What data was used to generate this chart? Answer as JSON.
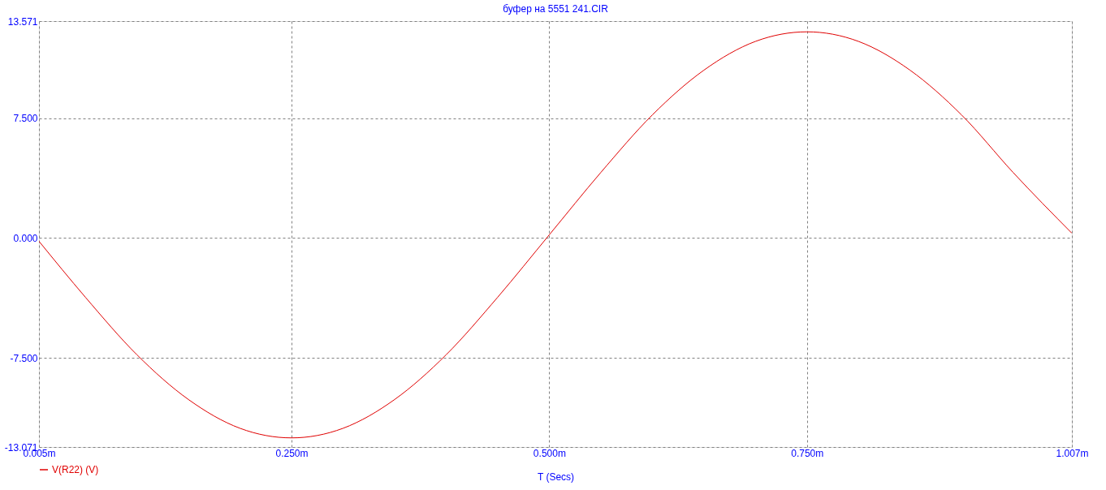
{
  "chart_data": {
    "type": "line",
    "title": "буфер на 5551 241.CIR",
    "xlabel": "T (Secs)",
    "x": [
      0.005,
      0.05,
      0.1,
      0.15,
      0.2,
      0.25,
      0.3,
      0.35,
      0.4,
      0.45,
      0.5,
      0.55,
      0.6,
      0.65,
      0.7,
      0.75,
      0.8,
      0.85,
      0.9,
      0.95,
      1.007
    ],
    "series": [
      {
        "name": "V(R22) (V)",
        "color": "#e00000",
        "values": [
          -0.2,
          -3.7,
          -7.3,
          -10.1,
          -11.9,
          -12.5,
          -11.9,
          -10.1,
          -7.3,
          -3.7,
          0.2,
          4.1,
          7.7,
          10.5,
          12.3,
          12.9,
          12.3,
          10.5,
          7.7,
          4.1,
          0.3
        ]
      }
    ],
    "xlim": [
      0.005,
      1.007
    ],
    "xticks": [
      {
        "value": 0.005,
        "label": "0.005m"
      },
      {
        "value": 0.25,
        "label": "0.250m"
      },
      {
        "value": 0.5,
        "label": "0.500m"
      },
      {
        "value": 0.75,
        "label": "0.750m"
      },
      {
        "value": 1.007,
        "label": "1.007m"
      }
    ],
    "ylim": [
      -13.071,
      13.571
    ],
    "yticks": [
      {
        "value": -13.071,
        "label": "-13.071"
      },
      {
        "value": -7.5,
        "label": "-7.500"
      },
      {
        "value": 0,
        "label": "0.000"
      },
      {
        "value": 7.5,
        "label": "7.500"
      },
      {
        "value": 13.571,
        "label": "13.571"
      }
    ],
    "grid": true,
    "legend": "bottom left",
    "line_style": "solid",
    "marker": "none"
  }
}
